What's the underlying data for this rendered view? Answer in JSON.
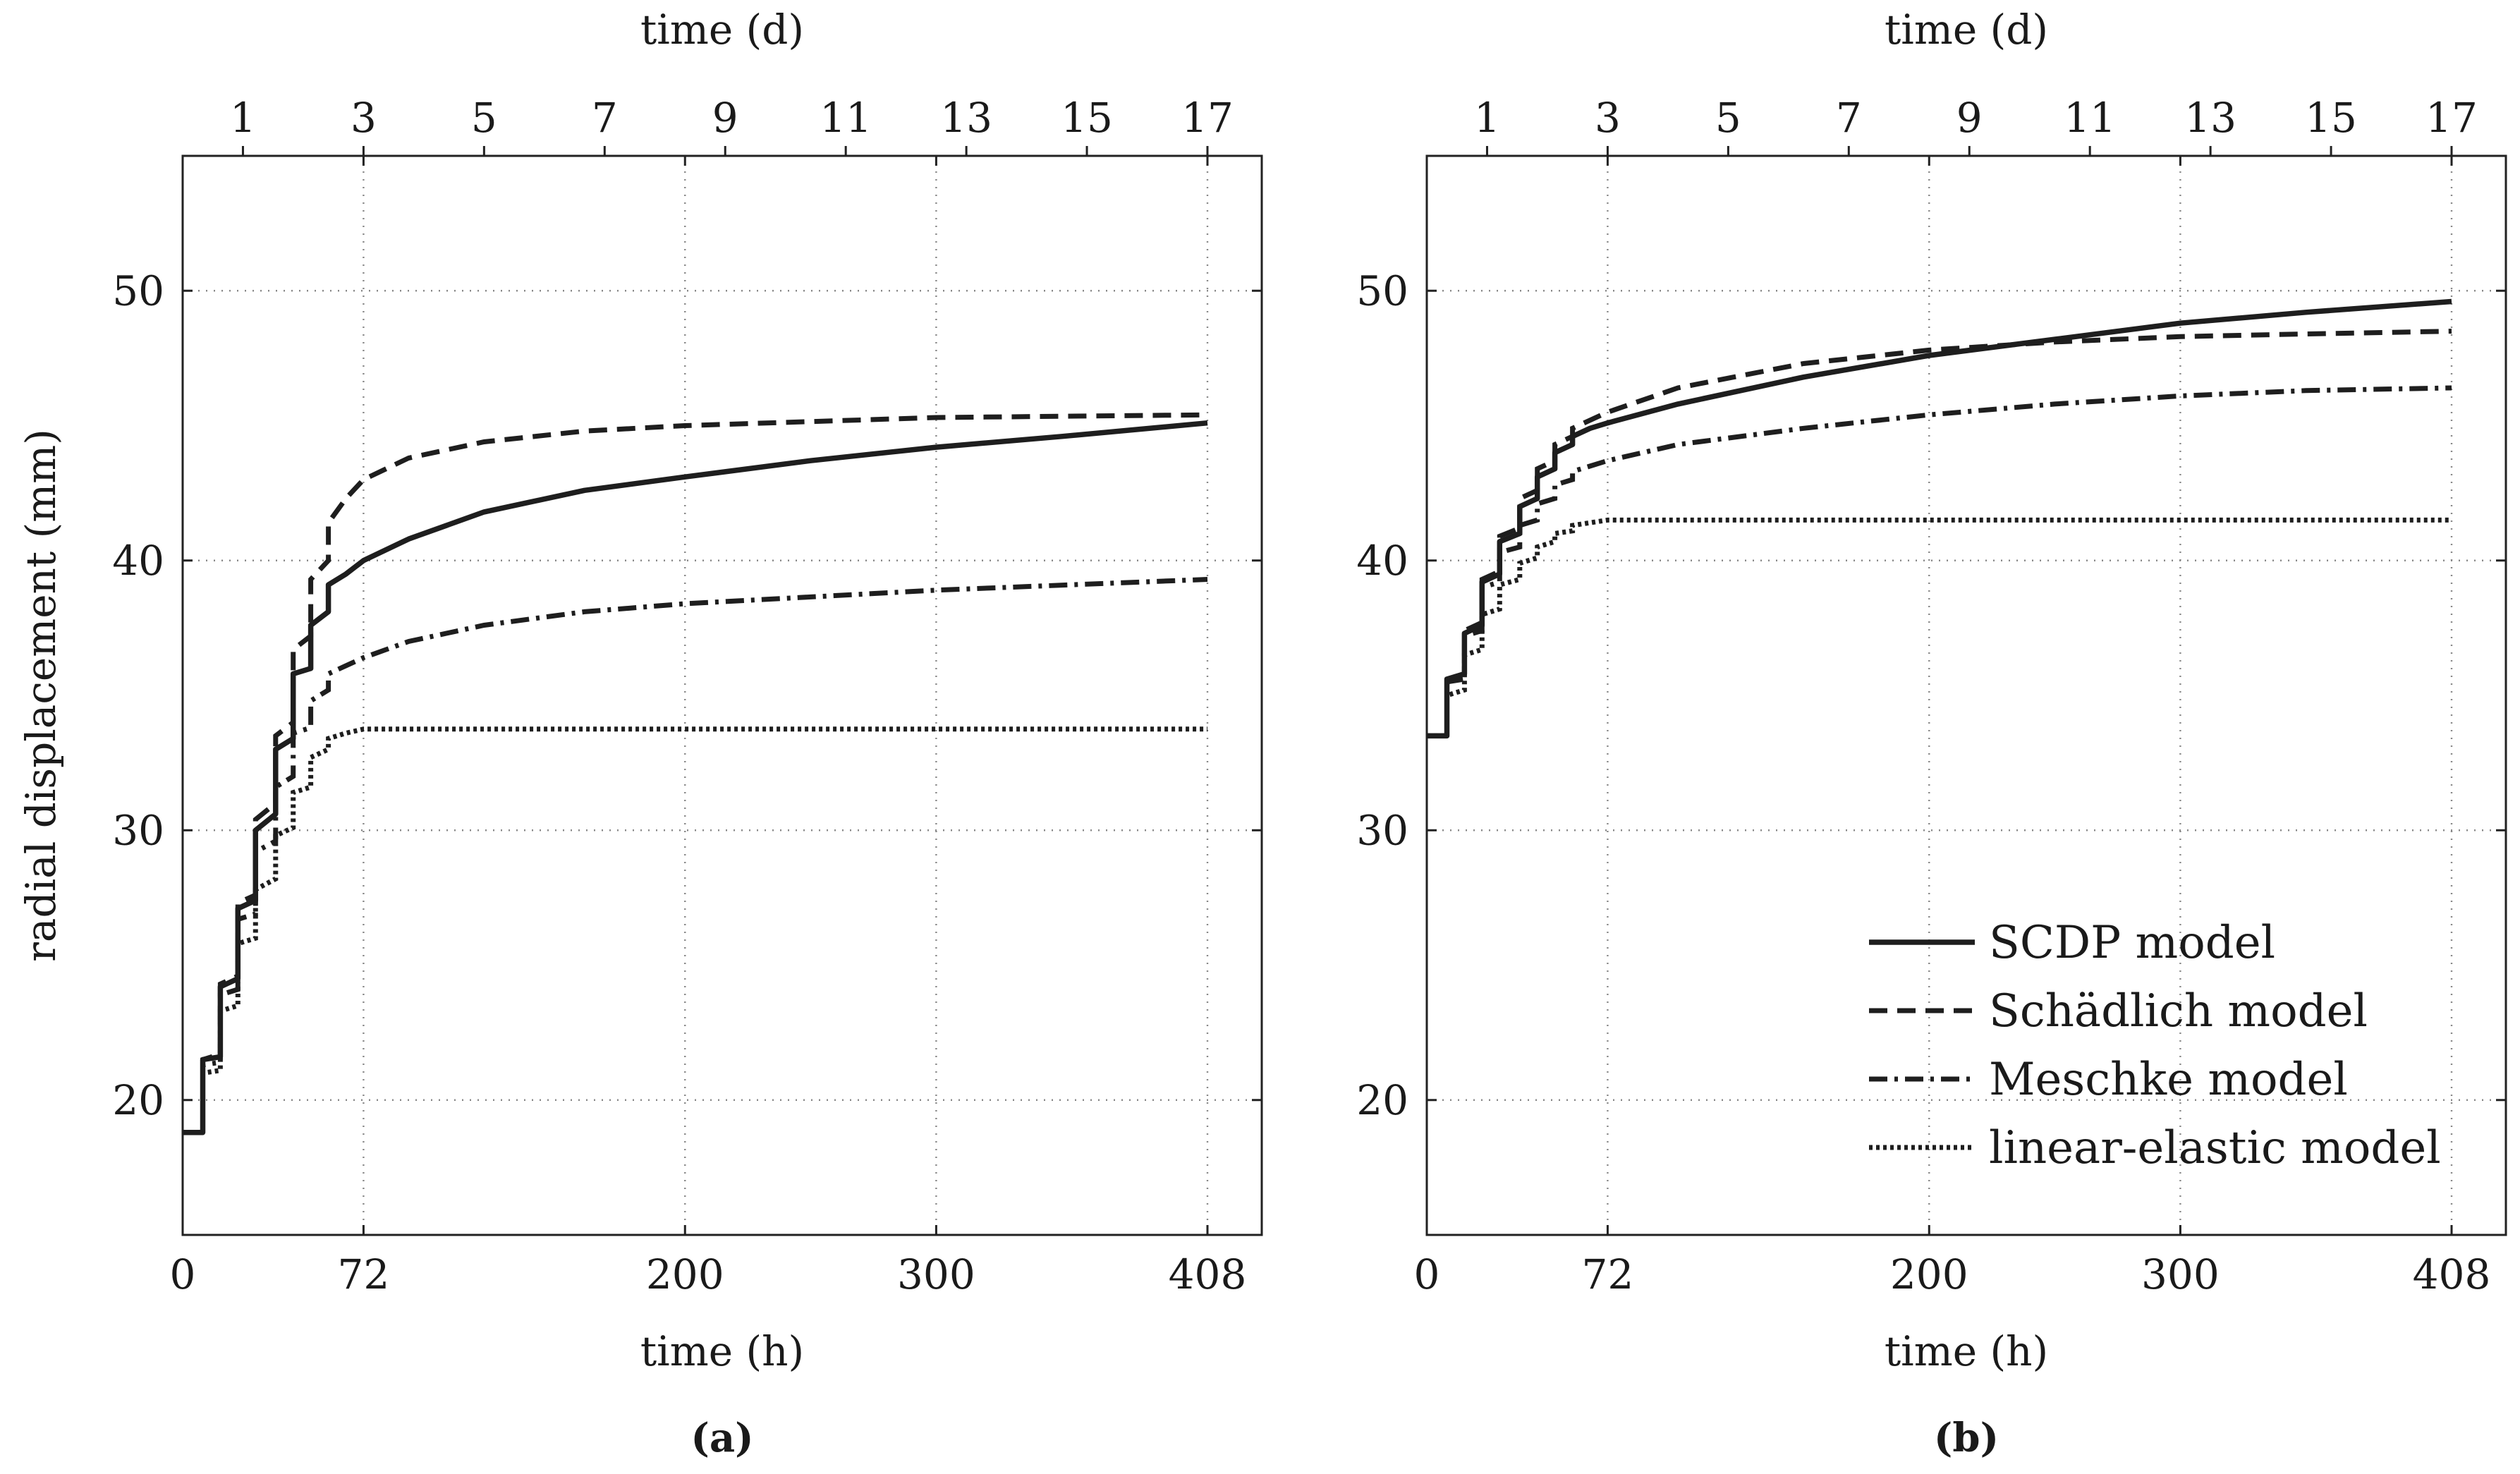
{
  "chart_data": [
    {
      "type": "line",
      "panel": "a",
      "caption": "(a)",
      "xlabel": "time (h)",
      "x2label": "time (d)",
      "ylabel": "radial displacement (mm)",
      "xlim": [
        0,
        420
      ],
      "ylim": [
        15,
        55
      ],
      "xticks": [
        0,
        72,
        200,
        300,
        408
      ],
      "xtick_labels": [
        "0",
        "72",
        "200",
        "300",
        "408"
      ],
      "x2ticks_days": [
        1,
        3,
        5,
        7,
        9,
        11,
        13,
        15,
        17
      ],
      "x2tick_labels": [
        "1",
        "3",
        "5",
        "7",
        "9",
        "11",
        "13",
        "15",
        "17"
      ],
      "yticks": [
        20,
        30,
        40,
        50
      ],
      "ytick_labels": [
        "20",
        "30",
        "40",
        "50"
      ],
      "grid": true,
      "series": [
        {
          "name": "SCDP model",
          "style": "solid",
          "points": [
            [
              0,
              18.8
            ],
            [
              8,
              18.8
            ],
            [
              8,
              21.5
            ],
            [
              15,
              21.6
            ],
            [
              15,
              24.2
            ],
            [
              22,
              24.5
            ],
            [
              22,
              27.1
            ],
            [
              29,
              27.4
            ],
            [
              29,
              30.0
            ],
            [
              37,
              30.6
            ],
            [
              37,
              33.0
            ],
            [
              44,
              33.4
            ],
            [
              44,
              35.8
            ],
            [
              51,
              36.0
            ],
            [
              51,
              37.6
            ],
            [
              58,
              38.1
            ],
            [
              58,
              39.1
            ],
            [
              65,
              39.5
            ],
            [
              72,
              40.0
            ],
            [
              90,
              40.8
            ],
            [
              120,
              41.8
            ],
            [
              160,
              42.6
            ],
            [
              200,
              43.1
            ],
            [
              250,
              43.7
            ],
            [
              300,
              44.2
            ],
            [
              350,
              44.6
            ],
            [
              408,
              45.1
            ]
          ]
        },
        {
          "name": "Schädlich model",
          "style": "dashed",
          "points": [
            [
              0,
              18.8
            ],
            [
              8,
              18.8
            ],
            [
              8,
              21.5
            ],
            [
              15,
              21.7
            ],
            [
              15,
              24.3
            ],
            [
              22,
              24.6
            ],
            [
              22,
              27.3
            ],
            [
              29,
              27.6
            ],
            [
              29,
              30.4
            ],
            [
              37,
              31.0
            ],
            [
              37,
              33.5
            ],
            [
              44,
              34.0
            ],
            [
              44,
              36.7
            ],
            [
              51,
              37.2
            ],
            [
              51,
              39.3
            ],
            [
              58,
              40.0
            ],
            [
              58,
              41.4
            ],
            [
              65,
              42.3
            ],
            [
              72,
              43.0
            ],
            [
              90,
              43.8
            ],
            [
              120,
              44.4
            ],
            [
              160,
              44.8
            ],
            [
              200,
              45.0
            ],
            [
              300,
              45.3
            ],
            [
              408,
              45.4
            ]
          ]
        },
        {
          "name": "Meschke model",
          "style": "dash-dot",
          "points": [
            [
              0,
              18.8
            ],
            [
              8,
              18.8
            ],
            [
              8,
              21.3
            ],
            [
              15,
              21.4
            ],
            [
              15,
              23.9
            ],
            [
              22,
              24.1
            ],
            [
              22,
              26.7
            ],
            [
              29,
              26.9
            ],
            [
              29,
              29.2
            ],
            [
              37,
              29.6
            ],
            [
              37,
              31.6
            ],
            [
              44,
              32.0
            ],
            [
              44,
              33.6
            ],
            [
              51,
              33.8
            ],
            [
              51,
              34.8
            ],
            [
              58,
              35.2
            ],
            [
              58,
              35.8
            ],
            [
              65,
              36.1
            ],
            [
              72,
              36.4
            ],
            [
              90,
              37.0
            ],
            [
              120,
              37.6
            ],
            [
              160,
              38.1
            ],
            [
              200,
              38.4
            ],
            [
              300,
              38.9
            ],
            [
              408,
              39.3
            ]
          ]
        },
        {
          "name": "linear-elastic model",
          "style": "dotted",
          "points": [
            [
              0,
              18.8
            ],
            [
              8,
              18.8
            ],
            [
              8,
              21.0
            ],
            [
              15,
              21.1
            ],
            [
              15,
              23.3
            ],
            [
              22,
              23.5
            ],
            [
              22,
              25.8
            ],
            [
              29,
              26.0
            ],
            [
              29,
              27.8
            ],
            [
              37,
              28.2
            ],
            [
              37,
              29.8
            ],
            [
              44,
              30.1
            ],
            [
              44,
              31.4
            ],
            [
              51,
              31.6
            ],
            [
              51,
              32.7
            ],
            [
              58,
              33.0
            ],
            [
              58,
              33.4
            ],
            [
              65,
              33.6
            ],
            [
              72,
              33.75
            ],
            [
              408,
              33.75
            ]
          ]
        }
      ]
    },
    {
      "type": "line",
      "panel": "b",
      "caption": "(b)",
      "xlabel": "time (h)",
      "x2label": "time (d)",
      "xlim": [
        0,
        420
      ],
      "ylim": [
        15,
        55
      ],
      "xticks": [
        0,
        72,
        200,
        300,
        408
      ],
      "xtick_labels": [
        "0",
        "72",
        "200",
        "300",
        "408"
      ],
      "x2ticks_days": [
        1,
        3,
        5,
        7,
        9,
        11,
        13,
        15,
        17
      ],
      "x2tick_labels": [
        "1",
        "3",
        "5",
        "7",
        "9",
        "11",
        "13",
        "15",
        "17"
      ],
      "yticks": [
        20,
        30,
        40,
        50
      ],
      "ytick_labels": [
        "20",
        "30",
        "40",
        "50"
      ],
      "grid": true,
      "legend": {
        "position": "bottom-right"
      },
      "series": [
        {
          "name": "SCDP model",
          "style": "solid",
          "points": [
            [
              0,
              33.5
            ],
            [
              8,
              33.5
            ],
            [
              8,
              35.6
            ],
            [
              15,
              35.8
            ],
            [
              15,
              37.3
            ],
            [
              22,
              37.6
            ],
            [
              22,
              39.2
            ],
            [
              29,
              39.5
            ],
            [
              29,
              40.7
            ],
            [
              37,
              41.0
            ],
            [
              37,
              42.0
            ],
            [
              44,
              42.3
            ],
            [
              44,
              43.1
            ],
            [
              51,
              43.4
            ],
            [
              51,
              44.0
            ],
            [
              58,
              44.3
            ],
            [
              58,
              44.6
            ],
            [
              65,
              44.9
            ],
            [
              72,
              45.1
            ],
            [
              100,
              45.8
            ],
            [
              150,
              46.8
            ],
            [
              200,
              47.6
            ],
            [
              250,
              48.2
            ],
            [
              300,
              48.8
            ],
            [
              350,
              49.2
            ],
            [
              408,
              49.6
            ]
          ]
        },
        {
          "name": "Schädlich model",
          "style": "dashed",
          "points": [
            [
              0,
              33.5
            ],
            [
              8,
              33.5
            ],
            [
              8,
              35.6
            ],
            [
              15,
              35.8
            ],
            [
              15,
              37.4
            ],
            [
              22,
              37.7
            ],
            [
              22,
              39.3
            ],
            [
              29,
              39.6
            ],
            [
              29,
              40.9
            ],
            [
              37,
              41.2
            ],
            [
              37,
              42.3
            ],
            [
              44,
              42.6
            ],
            [
              44,
              43.4
            ],
            [
              51,
              43.7
            ],
            [
              51,
              44.3
            ],
            [
              58,
              44.6
            ],
            [
              58,
              44.9
            ],
            [
              65,
              45.2
            ],
            [
              72,
              45.5
            ],
            [
              100,
              46.4
            ],
            [
              150,
              47.3
            ],
            [
              200,
              47.8
            ],
            [
              250,
              48.1
            ],
            [
              300,
              48.3
            ],
            [
              350,
              48.4
            ],
            [
              408,
              48.5
            ]
          ]
        },
        {
          "name": "Meschke model",
          "style": "dash-dot",
          "points": [
            [
              0,
              33.5
            ],
            [
              8,
              33.5
            ],
            [
              8,
              35.5
            ],
            [
              15,
              35.6
            ],
            [
              15,
              37.2
            ],
            [
              22,
              37.4
            ],
            [
              22,
              39.0
            ],
            [
              29,
              39.2
            ],
            [
              29,
              40.3
            ],
            [
              37,
              40.5
            ],
            [
              37,
              41.3
            ],
            [
              44,
              41.5
            ],
            [
              44,
              42.1
            ],
            [
              51,
              42.3
            ],
            [
              51,
              42.8
            ],
            [
              58,
              43.0
            ],
            [
              58,
              43.3
            ],
            [
              65,
              43.5
            ],
            [
              72,
              43.7
            ],
            [
              100,
              44.3
            ],
            [
              150,
              44.9
            ],
            [
              200,
              45.4
            ],
            [
              250,
              45.8
            ],
            [
              300,
              46.1
            ],
            [
              350,
              46.3
            ],
            [
              408,
              46.4
            ]
          ]
        },
        {
          "name": "linear-elastic model",
          "style": "dotted",
          "points": [
            [
              0,
              33.5
            ],
            [
              8,
              33.5
            ],
            [
              8,
              35.0
            ],
            [
              15,
              35.2
            ],
            [
              15,
              36.5
            ],
            [
              22,
              36.7
            ],
            [
              22,
              38.0
            ],
            [
              29,
              38.2
            ],
            [
              29,
              39.1
            ],
            [
              37,
              39.3
            ],
            [
              37,
              39.9
            ],
            [
              44,
              40.1
            ],
            [
              44,
              40.5
            ],
            [
              51,
              40.7
            ],
            [
              51,
              41.0
            ],
            [
              58,
              41.1
            ],
            [
              58,
              41.3
            ],
            [
              65,
              41.4
            ],
            [
              72,
              41.5
            ],
            [
              408,
              41.5
            ]
          ]
        }
      ]
    }
  ]
}
